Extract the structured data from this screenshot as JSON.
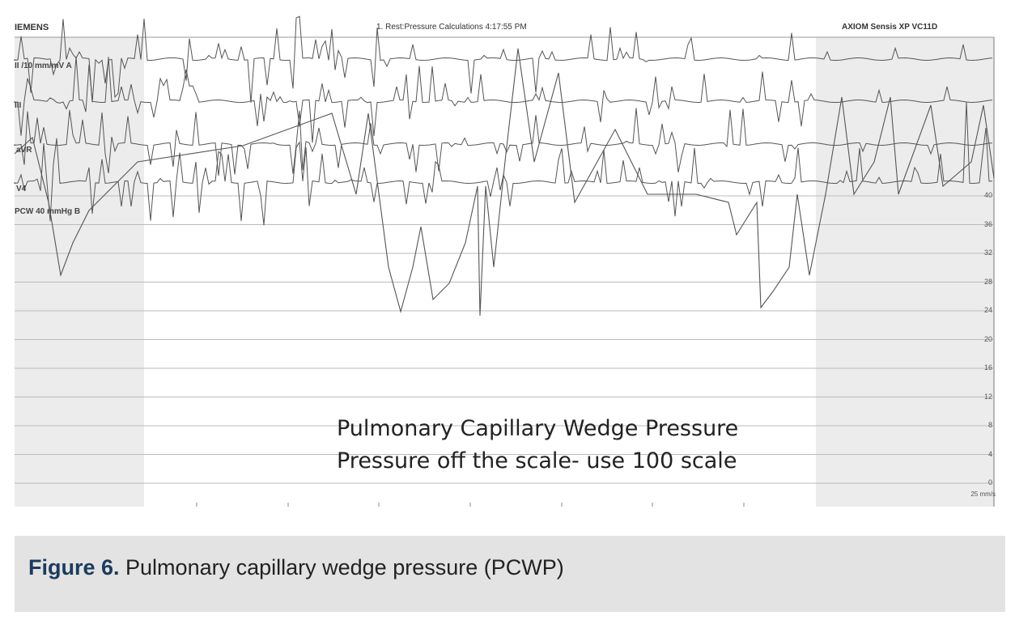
{
  "figure": {
    "header_left": "IEMENS",
    "header_center": "1. Rest:Pressure Calculations 4:17:55 PM",
    "header_right": "AXIOM Sensis XP VC11D",
    "leads": [
      "II /10 mm/mV  A",
      "III",
      "aVR",
      "V4",
      "PCW  40 mmHg  B"
    ],
    "pressure_scale": [
      "40",
      "36",
      "32",
      "28",
      "24",
      "20",
      "16",
      "12",
      "8",
      "4",
      "0"
    ],
    "paper_speed": "25 mm/s",
    "annotation": [
      "Pulmonary Capillary Wedge Pressure",
      "Pressure off the scale- use 100 scale"
    ],
    "trace_color": "#555555"
  },
  "caption": {
    "label": "Figure 6.",
    "text": " Pulmonary capillary wedge pressure (PCWP)",
    "label_color": "#1b3c5e",
    "background": "#e3e3e3"
  }
}
